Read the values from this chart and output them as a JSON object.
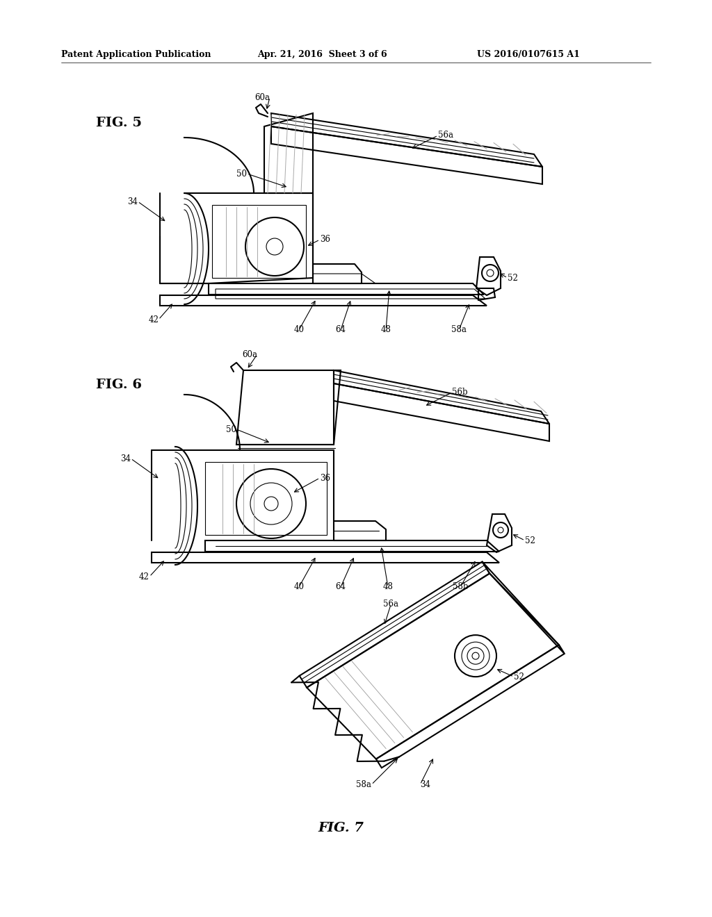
{
  "background_color": "#ffffff",
  "page_width": 10.24,
  "page_height": 13.2,
  "header_text": "Patent Application Publication",
  "header_date": "Apr. 21, 2016  Sheet 3 of 6",
  "header_patent": "US 2016/0107615 A1",
  "fig5_label": "FIG. 5",
  "fig6_label": "FIG. 6",
  "fig7_label": "FIG. 7",
  "text_color": "#000000",
  "line_color": "#000000",
  "header_fontsize": 9,
  "figlabel_fontsize": 14,
  "annotation_fontsize": 8.5
}
